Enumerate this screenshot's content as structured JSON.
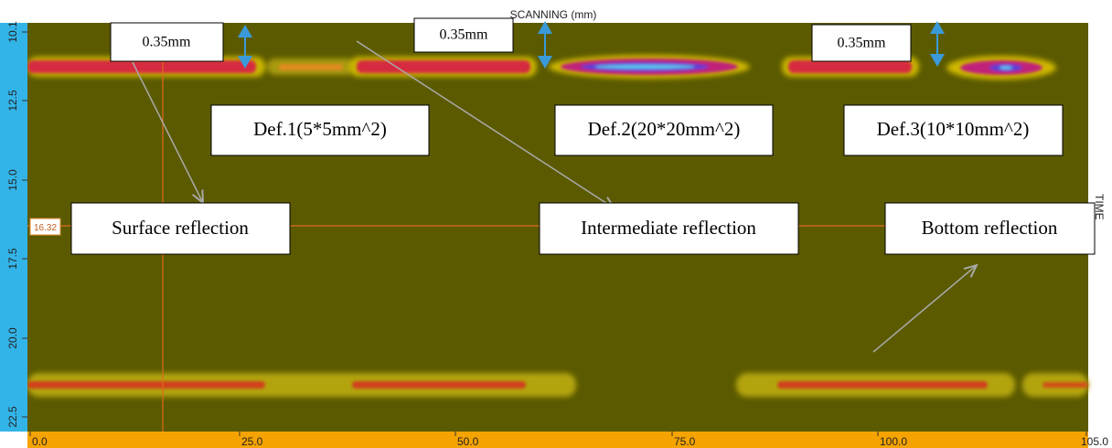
{
  "header": {
    "title": "SCANNING (mm)"
  },
  "axes": {
    "y_ticks": [
      "10.1",
      "12.5",
      "15.0",
      "17.5",
      "20.0",
      "22.5"
    ],
    "x_ticks": [
      "0.0",
      "25.0",
      "50.0",
      "75.0",
      "100.0",
      "105.0"
    ],
    "y_label": "TIME"
  },
  "cursor": {
    "value": "16.32"
  },
  "annotations": {
    "thickness": [
      "0.35mm",
      "0.35mm",
      "0.35mm"
    ],
    "defects": [
      "Def.1(5*5mm^2)",
      "Def.2(20*20mm^2)",
      "Def.3(10*10mm^2)"
    ],
    "reflections": [
      "Surface reflection",
      "Intermediate reflection",
      "Bottom reflection"
    ]
  }
}
